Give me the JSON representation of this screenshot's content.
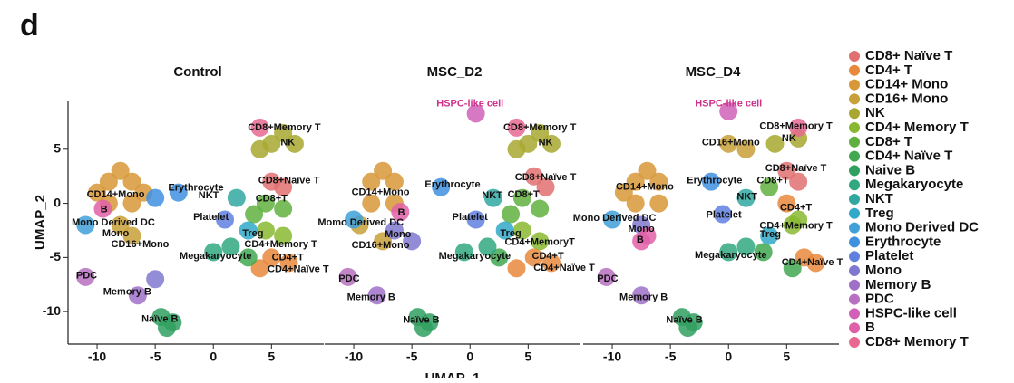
{
  "panel_label": "d",
  "legend": {
    "entries": [
      {
        "name": "CD8+ Naïve T",
        "color": "#e07070"
      },
      {
        "name": "CD4+ T",
        "color": "#e8883c"
      },
      {
        "name": "CD14+ Mono",
        "color": "#d89838"
      },
      {
        "name": "CD16+ Mono",
        "color": "#c8a038"
      },
      {
        "name": "NK",
        "color": "#a8a830"
      },
      {
        "name": "CD4+ Memory T",
        "color": "#88b830"
      },
      {
        "name": "CD8+ T",
        "color": "#60b040"
      },
      {
        "name": "CD4+ Naïve T",
        "color": "#40a850"
      },
      {
        "name": "Naive B",
        "color": "#30a060"
      },
      {
        "name": "Megakaryocyte",
        "color": "#30a880"
      },
      {
        "name": "NKT",
        "color": "#30a8a0"
      },
      {
        "name": "Treg",
        "color": "#30a8c8"
      },
      {
        "name": "Mono Derived DC",
        "color": "#40a0d8"
      },
      {
        "name": "Erythrocyte",
        "color": "#4090e0"
      },
      {
        "name": "Platelet",
        "color": "#6080e0"
      },
      {
        "name": "Mono",
        "color": "#8078d0"
      },
      {
        "name": "Memory B",
        "color": "#a070c8"
      },
      {
        "name": "PDC",
        "color": "#b870c0"
      },
      {
        "name": "HSPC-like cell",
        "color": "#d060b8"
      },
      {
        "name": "B",
        "color": "#e060a8"
      },
      {
        "name": "CD8+ Memory T",
        "color": "#e86890"
      }
    ]
  },
  "chart_data": [
    {
      "type": "scatter",
      "title": "Control",
      "ylabel": "UMAP_2",
      "xlim": [
        -12.5,
        9.5
      ],
      "ylim": [
        -13,
        9.5
      ],
      "xticks": [
        -10,
        -5,
        0,
        5
      ],
      "yticks": [
        -10,
        -5,
        0,
        5
      ],
      "x": [
        -9,
        -7,
        -9,
        -7,
        -8,
        -10,
        -6,
        -8,
        -7,
        -11,
        -3,
        -5,
        2,
        1,
        5,
        7,
        6,
        4,
        4,
        5,
        6,
        4.5,
        6,
        3.5,
        6,
        4.5,
        3,
        5,
        6.5,
        4,
        3,
        0,
        1.5,
        -11,
        -6.5,
        -5,
        -4.5,
        -3.5,
        -4,
        -9.5
      ],
      "y": [
        2,
        2,
        0,
        0,
        3,
        1,
        1,
        -2,
        -3,
        -2,
        1,
        0.5,
        0.5,
        -1.5,
        5.5,
        5.5,
        6.5,
        5,
        7,
        2,
        1.5,
        0,
        -0.5,
        -1,
        -3,
        -2.5,
        -2.5,
        -5,
        -5.5,
        -6,
        -5,
        -4.5,
        -4,
        -6.8,
        -8.5,
        -7,
        -10.5,
        -11,
        -11.5,
        -0.5
      ],
      "colors": [
        "#d89838",
        "#d89838",
        "#d89838",
        "#d89838",
        "#d89838",
        "#d89838",
        "#d89838",
        "#c8a038",
        "#c8a038",
        "#40a0d8",
        "#4090e0",
        "#4090e0",
        "#30a8a0",
        "#6080e0",
        "#a8a830",
        "#a8a830",
        "#a8a830",
        "#a8a830",
        "#e86890",
        "#e07070",
        "#e07070",
        "#60b040",
        "#60b040",
        "#60b040",
        "#88b830",
        "#88b830",
        "#30a8c8",
        "#e8883c",
        "#e8883c",
        "#e8883c",
        "#40a850",
        "#30a880",
        "#30a880",
        "#b870c0",
        "#a070c8",
        "#8078d0",
        "#30a060",
        "#30a060",
        "#30a060",
        "#e060a8"
      ],
      "annotations": [
        {
          "text": "CD8+Memory T",
          "x": 6.1,
          "y": 7
        },
        {
          "text": "NK",
          "x": 6.4,
          "y": 5.6
        },
        {
          "text": "CD8+Naïve T",
          "x": 6.5,
          "y": 2.1
        },
        {
          "text": "Erythrocyte",
          "x": -1.5,
          "y": 1.4
        },
        {
          "text": "NKT",
          "x": -0.4,
          "y": 0.7
        },
        {
          "text": "CD8+T",
          "x": 5,
          "y": 0.4
        },
        {
          "text": "CD14+Mono",
          "x": -8.4,
          "y": 0.8
        },
        {
          "text": "B",
          "x": -9.4,
          "y": -0.6
        },
        {
          "text": "Platelet",
          "x": -0.2,
          "y": -1.3
        },
        {
          "text": "Mono Derived DC",
          "x": -8.6,
          "y": -1.8
        },
        {
          "text": "Mono",
          "x": -8.4,
          "y": -2.8
        },
        {
          "text": "Treg",
          "x": 3.4,
          "y": -2.8
        },
        {
          "text": "CD16+Mono",
          "x": -6.3,
          "y": -3.8
        },
        {
          "text": "CD4+Memory T",
          "x": 5.8,
          "y": -3.8
        },
        {
          "text": "Megakaryocyte",
          "x": 0.2,
          "y": -4.9
        },
        {
          "text": "CD4+T",
          "x": 6.4,
          "y": -5
        },
        {
          "text": "CD4+Naïve T",
          "x": 7.3,
          "y": -6.1
        },
        {
          "text": "PDC",
          "x": -10.9,
          "y": -6.7
        },
        {
          "text": "Memory B",
          "x": -7.4,
          "y": -8.2
        },
        {
          "text": "Naïve B",
          "x": -4.6,
          "y": -10.7
        }
      ]
    },
    {
      "type": "scatter",
      "title": "MSC_D2",
      "xlabel": "UMAP_1",
      "xlim": [
        -12.5,
        9.5
      ],
      "ylim": [
        -13,
        9.5
      ],
      "xticks": [
        -10,
        -5,
        0,
        5
      ],
      "x": [
        -8.5,
        -6.5,
        -8.5,
        -6.5,
        -7.5,
        -9.5,
        -7.5,
        -6.5,
        -10,
        -2.5,
        2,
        0.5,
        5,
        7,
        6,
        4,
        4,
        5.5,
        6.5,
        4.5,
        6,
        3.5,
        6,
        4.5,
        3,
        5.5,
        7,
        4,
        2.5,
        -0.5,
        1.5,
        -10.5,
        -8,
        -5,
        -4.5,
        -3.5,
        -4,
        -6,
        0.5
      ],
      "y": [
        2,
        2,
        0,
        0,
        3,
        -2,
        -3.5,
        -2.5,
        -1.5,
        1.5,
        0.5,
        -1.5,
        5.5,
        5.5,
        6.5,
        5,
        7,
        2.5,
        1.5,
        0.5,
        -0.5,
        -1,
        -3.5,
        -2.5,
        -2.5,
        -5,
        -5.5,
        -6,
        -5,
        -4.5,
        -4,
        -6.8,
        -8.5,
        -3.5,
        -10.5,
        -11,
        -11.5,
        -0.8,
        8.3
      ],
      "colors": [
        "#d89838",
        "#d89838",
        "#d89838",
        "#d89838",
        "#d89838",
        "#c8a038",
        "#c8a038",
        "#8078d0",
        "#40a0d8",
        "#4090e0",
        "#30a8a0",
        "#6080e0",
        "#a8a830",
        "#a8a830",
        "#a8a830",
        "#a8a830",
        "#e86890",
        "#e07070",
        "#e07070",
        "#60b040",
        "#60b040",
        "#60b040",
        "#88b830",
        "#88b830",
        "#30a8c8",
        "#e8883c",
        "#e8883c",
        "#e8883c",
        "#40a850",
        "#30a880",
        "#30a880",
        "#b870c0",
        "#a070c8",
        "#8078d0",
        "#30a060",
        "#30a060",
        "#30a060",
        "#e060a8",
        "#d060b8"
      ],
      "annotations": [
        {
          "text": "HSPC-like cell",
          "x": 0,
          "y": 9.2,
          "color": "#d0308a"
        },
        {
          "text": "CD8+Memory T",
          "x": 6,
          "y": 7
        },
        {
          "text": "NK",
          "x": 6.5,
          "y": 5.6
        },
        {
          "text": "CD8+Naïve T",
          "x": 6.5,
          "y": 2.4
        },
        {
          "text": "Erythrocyte",
          "x": -1.5,
          "y": 1.7
        },
        {
          "text": "NKT",
          "x": 1.9,
          "y": 0.7
        },
        {
          "text": "CD8+T",
          "x": 4.6,
          "y": 0.8
        },
        {
          "text": "CD14+Mono",
          "x": -7.7,
          "y": 1
        },
        {
          "text": "B",
          "x": -5.9,
          "y": -0.9
        },
        {
          "text": "Platelet",
          "x": 0,
          "y": -1.3
        },
        {
          "text": "Momo Derived DC",
          "x": -9.4,
          "y": -1.8
        },
        {
          "text": "Mono",
          "x": -6.2,
          "y": -2.9
        },
        {
          "text": "Treg",
          "x": 3.5,
          "y": -2.8
        },
        {
          "text": "CD4+MemoryT",
          "x": 6,
          "y": -3.6
        },
        {
          "text": "CD16+Mono",
          "x": -7.7,
          "y": -3.9
        },
        {
          "text": "Megakaryocyte",
          "x": 0.4,
          "y": -4.9
        },
        {
          "text": "CD4+T",
          "x": 6.7,
          "y": -4.9
        },
        {
          "text": "CD4+Naïve T",
          "x": 8.1,
          "y": -6
        },
        {
          "text": "PDC",
          "x": -10.4,
          "y": -7
        },
        {
          "text": "Memory B",
          "x": -8.5,
          "y": -8.7
        },
        {
          "text": "Naïve B",
          "x": -4.2,
          "y": -10.8
        }
      ]
    },
    {
      "type": "scatter",
      "title": "MSC_D4",
      "xlim": [
        -12.5,
        9.5
      ],
      "ylim": [
        -13,
        9.5
      ],
      "xticks": [
        -10,
        -5,
        0,
        5
      ],
      "x": [
        -8,
        -6,
        -8,
        -6,
        -7,
        -9,
        -7.5,
        -10,
        -1.5,
        1.5,
        -0.5,
        0,
        1.5,
        4,
        6,
        5,
        6,
        6,
        3.5,
        5,
        6,
        5.5,
        3.5,
        6.5,
        7.5,
        5.5,
        3,
        0,
        1.5,
        -10.5,
        -7.5,
        -7,
        -4,
        -3,
        -3.5,
        -7.5,
        0
      ],
      "y": [
        2,
        2,
        0,
        0,
        3,
        1,
        -2,
        -1.5,
        2,
        0.5,
        -1,
        5.5,
        5,
        5.5,
        6,
        3,
        7,
        2,
        1.5,
        0,
        -1.5,
        -2,
        -3,
        -5,
        -5.5,
        -6,
        -4.5,
        -4.5,
        -4,
        -6.8,
        -8.5,
        -3,
        -10.5,
        -11,
        -11.5,
        -3.5,
        8.5
      ],
      "colors": [
        "#d89838",
        "#d89838",
        "#d89838",
        "#d89838",
        "#d89838",
        "#d89838",
        "#8078d0",
        "#40a0d8",
        "#4090e0",
        "#30a8a0",
        "#6080e0",
        "#c8a038",
        "#c8a038",
        "#a8a830",
        "#a8a830",
        "#e07070",
        "#e86890",
        "#e07070",
        "#60b040",
        "#e8883c",
        "#88b830",
        "#88b830",
        "#30a8c8",
        "#e8883c",
        "#e8883c",
        "#40a850",
        "#40a850",
        "#30a880",
        "#30a880",
        "#b870c0",
        "#a070c8",
        "#e060a8",
        "#30a060",
        "#30a060",
        "#30a060",
        "#e060a8",
        "#d060b8"
      ],
      "annotations": [
        {
          "text": "HSPC-like cell",
          "x": 0,
          "y": 9.2,
          "color": "#d0308a"
        },
        {
          "text": "CD8+Memory T",
          "x": 5.8,
          "y": 7.1
        },
        {
          "text": "CD16+Mono",
          "x": 0.2,
          "y": 5.6
        },
        {
          "text": "NK",
          "x": 5.2,
          "y": 6
        },
        {
          "text": "CD8+Naïve T",
          "x": 5.8,
          "y": 3.2
        },
        {
          "text": "Erythrocyte",
          "x": -1.2,
          "y": 2.1
        },
        {
          "text": "CD8+T",
          "x": 3.8,
          "y": 2.1
        },
        {
          "text": "NKT",
          "x": 1.6,
          "y": 0.6
        },
        {
          "text": "CD14+Mono",
          "x": -7.2,
          "y": 1.5
        },
        {
          "text": "CD4+T",
          "x": 5.8,
          "y": -0.4
        },
        {
          "text": "Mono Derived DC",
          "x": -9.8,
          "y": -1.4
        },
        {
          "text": "Mono",
          "x": -7.5,
          "y": -2.4
        },
        {
          "text": "Platelet",
          "x": -0.4,
          "y": -1.1
        },
        {
          "text": "CD4+Memory T",
          "x": 5.8,
          "y": -2.1
        },
        {
          "text": "Treg",
          "x": 3.6,
          "y": -2.9
        },
        {
          "text": "B",
          "x": -7.6,
          "y": -3.4
        },
        {
          "text": "Megakaryocyte",
          "x": 0.2,
          "y": -4.8
        },
        {
          "text": "CD4+Naïve T",
          "x": 7.2,
          "y": -5.5
        },
        {
          "text": "PDC",
          "x": -10.4,
          "y": -7
        },
        {
          "text": "Memory B",
          "x": -7.3,
          "y": -8.7
        },
        {
          "text": "Naïve B",
          "x": -3.8,
          "y": -10.8
        }
      ]
    }
  ]
}
